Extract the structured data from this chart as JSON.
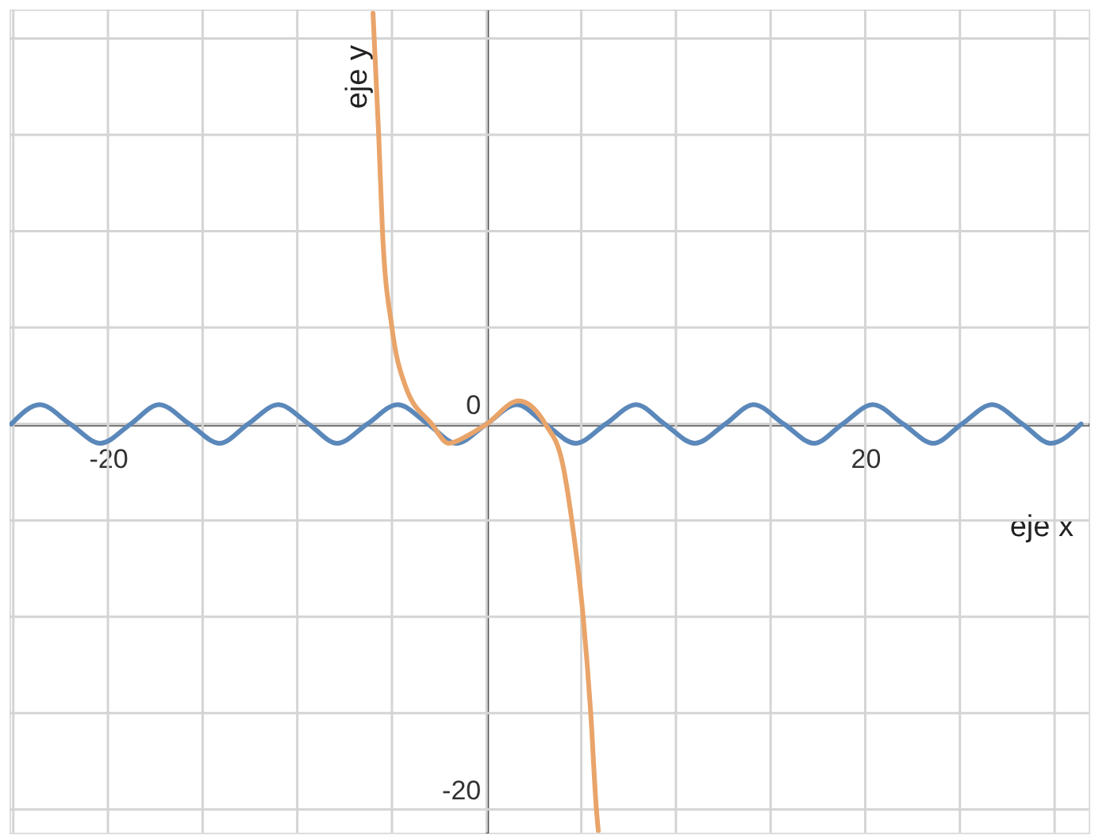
{
  "chart_data": {
    "type": "line",
    "xlabel": "eje x",
    "ylabel": "eje y",
    "xlim": [
      -25.2,
      31.8
    ],
    "ylim": [
      -21.2,
      21.5
    ],
    "xticks": [
      {
        "value": -25,
        "label": null
      },
      -20,
      {
        "value": -15,
        "label": null
      },
      {
        "value": -10,
        "label": null
      },
      {
        "value": -5,
        "label": null
      },
      {
        "value": 0,
        "label": null
      },
      {
        "value": 5,
        "label": null
      },
      {
        "value": 10,
        "label": null
      },
      {
        "value": 15,
        "label": null
      },
      20,
      {
        "value": 25,
        "label": null
      },
      {
        "value": 30,
        "label": null
      }
    ],
    "yticks": [
      -20,
      {
        "value": -15,
        "label": null
      },
      {
        "value": -10,
        "label": null
      },
      {
        "value": -5,
        "label": null
      },
      0,
      {
        "value": 5,
        "label": null
      },
      {
        "value": 10,
        "label": null
      },
      {
        "value": 15,
        "label": null
      },
      {
        "value": 20,
        "label": null
      }
    ],
    "grid": true,
    "marker": "none",
    "line_style": "solid",
    "series": [
      {
        "color": "#5b88ba",
        "x": [
          -25.1,
          -23.6,
          -22.0,
          -20.4,
          -18.8,
          -17.3,
          -15.7,
          -14.1,
          -12.6,
          -11.0,
          -9.4,
          -7.9,
          -6.3,
          -4.7,
          -3.1,
          -1.6,
          0,
          1.6,
          3.1,
          4.7,
          6.3,
          7.9,
          9.4,
          11.0,
          12.6,
          14.1,
          15.7,
          17.3,
          18.8,
          20.4,
          22.0,
          23.6,
          25.1,
          26.7,
          28.3,
          29.8,
          31.4
        ],
        "values": [
          0,
          1,
          0,
          -1,
          0,
          1,
          0,
          -1,
          0,
          1,
          0,
          -1,
          0,
          1,
          0,
          -1,
          0,
          1,
          0,
          -1,
          0,
          1,
          0,
          -1,
          0,
          1,
          0,
          -1,
          0,
          1,
          0,
          -1,
          0,
          1,
          0,
          -1,
          0
        ]
      },
      {
        "color": "#e9a46a",
        "x": [
          -6.0,
          -5.7,
          -5.5,
          -5.0,
          -4.3,
          -2.9,
          -2.0,
          -1.0,
          0,
          1.7,
          3.1,
          4.0,
          4.5,
          5.1,
          5.5,
          5.8,
          5.9
        ],
        "values": [
          21.3,
          15,
          10,
          5,
          2,
          0,
          -1,
          -0.6,
          0,
          1.2,
          0,
          -2,
          -5,
          -10,
          -15,
          -20,
          -21.1
        ]
      }
    ]
  }
}
